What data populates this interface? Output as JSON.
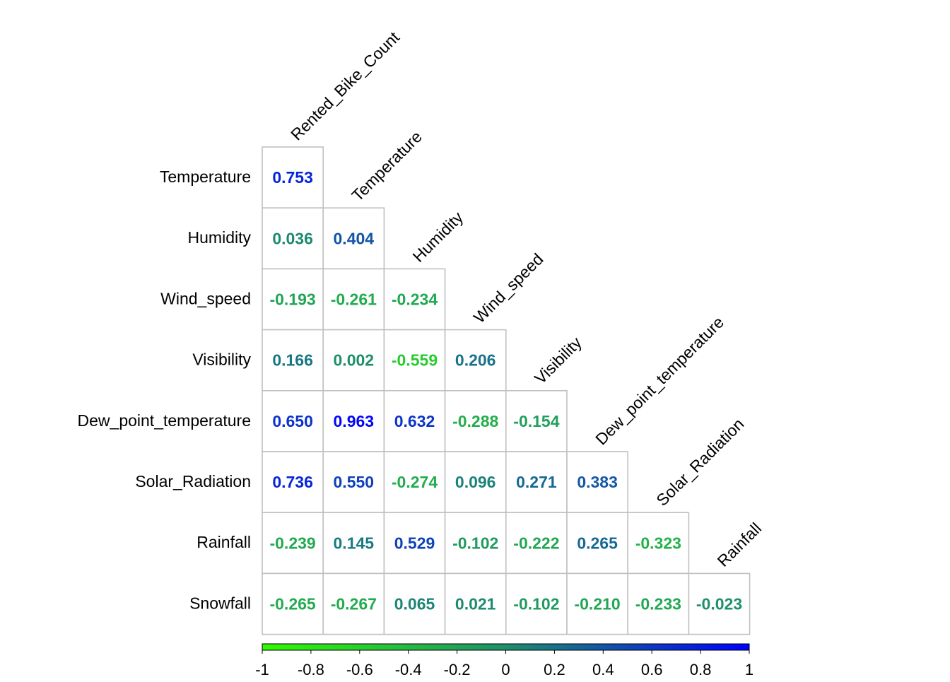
{
  "chart_data": {
    "type": "heatmap",
    "subtype": "correlation-lower-triangle",
    "title": "",
    "column_labels": [
      "Rented_Bike_Count",
      "Temperature",
      "Humidity",
      "Wind_speed",
      "Visibility",
      "Dew_point_temperature",
      "Solar_Radiation",
      "Rainfall"
    ],
    "row_labels": [
      "Temperature",
      "Humidity",
      "Wind_speed",
      "Visibility",
      "Dew_point_temperature",
      "Solar_Radiation",
      "Rainfall",
      "Snowfall"
    ],
    "values": [
      [
        0.753
      ],
      [
        0.036,
        0.404
      ],
      [
        -0.193,
        -0.261,
        -0.234
      ],
      [
        0.166,
        0.002,
        -0.559,
        0.206
      ],
      [
        0.65,
        0.963,
        0.632,
        -0.288,
        -0.154
      ],
      [
        0.736,
        0.55,
        -0.274,
        0.096,
        0.271,
        0.383
      ],
      [
        -0.239,
        0.145,
        0.529,
        -0.102,
        -0.222,
        0.265,
        -0.323
      ],
      [
        -0.265,
        -0.267,
        0.065,
        0.021,
        -0.102,
        -0.21,
        -0.233,
        -0.023
      ]
    ],
    "value_labels": [
      [
        "0.753"
      ],
      [
        "0.036",
        "0.404"
      ],
      [
        "-0.193",
        "-0.261",
        "-0.234"
      ],
      [
        "0.166",
        "0.002",
        "-0.559",
        "0.206"
      ],
      [
        "0.650",
        "0.963",
        "0.632",
        "-0.288",
        "-0.154"
      ],
      [
        "0.736",
        "0.550",
        "-0.274",
        "0.096",
        "0.271",
        "0.383"
      ],
      [
        "-0.239",
        "0.145",
        "0.529",
        "-0.102",
        "-0.222",
        "0.265",
        "-0.323"
      ],
      [
        "-0.265",
        "-0.267",
        "0.065",
        "0.021",
        "-0.102",
        "-0.210",
        "-0.233",
        "-0.023"
      ]
    ],
    "colorbar": {
      "range": [
        -1,
        1
      ],
      "ticks": [
        "-1",
        "-0.8",
        "-0.6",
        "-0.4",
        "-0.2",
        "0",
        "0.2",
        "0.4",
        "0.6",
        "0.8",
        "1"
      ],
      "color_stops": [
        "#2efb00",
        "#1e8f6b",
        "#0000ff"
      ]
    },
    "grid": true,
    "legend": "bottom"
  }
}
